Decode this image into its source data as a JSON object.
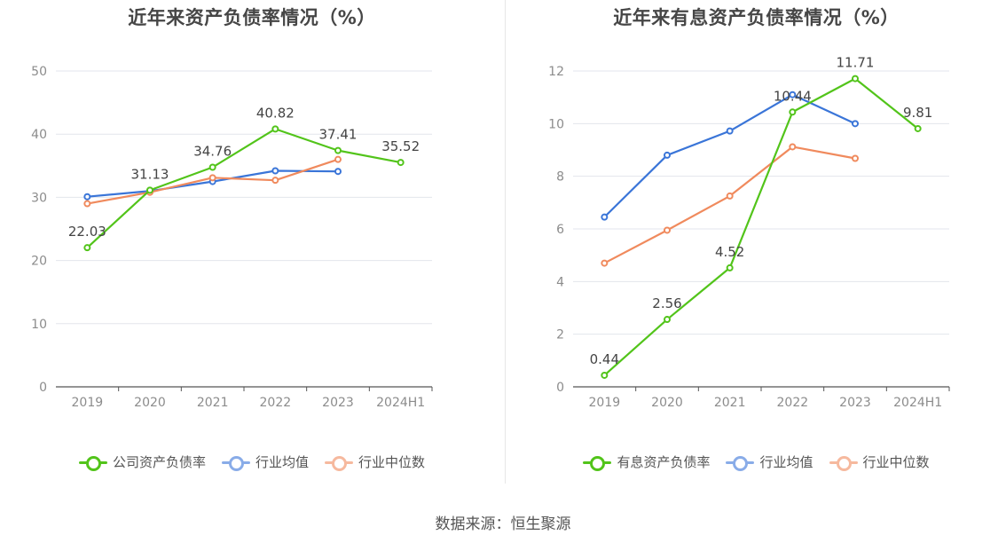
{
  "source": "数据来源：恒生聚源",
  "chart_data": [
    {
      "type": "line",
      "title": "近年来资产负债率情况（%）",
      "categories": [
        "2019",
        "2020",
        "2021",
        "2022",
        "2023",
        "2024H1"
      ],
      "ylim": [
        0,
        50
      ],
      "yticks": [
        0,
        10,
        20,
        30,
        40,
        50
      ],
      "grid": true,
      "legend_position": "bottom",
      "series": [
        {
          "name": "公司资产负债率",
          "color": "#52c41a",
          "values": [
            22.03,
            31.13,
            34.76,
            40.82,
            37.41,
            35.52
          ],
          "labels": [
            "22.03",
            "31.13",
            "34.76",
            "40.82",
            "37.41",
            "35.52"
          ]
        },
        {
          "name": "行业均值",
          "color": "#3a75d8",
          "values": [
            30.1,
            31.0,
            32.5,
            34.2,
            34.1,
            null
          ],
          "labels": null
        },
        {
          "name": "行业中位数",
          "color": "#f08a5d",
          "values": [
            29.0,
            30.8,
            33.1,
            32.7,
            36.0,
            null
          ],
          "labels": null
        }
      ]
    },
    {
      "type": "line",
      "title": "近年来有息资产负债率情况（%）",
      "categories": [
        "2019",
        "2020",
        "2021",
        "2022",
        "2023",
        "2024H1"
      ],
      "ylim": [
        0,
        12
      ],
      "yticks": [
        0,
        2,
        4,
        6,
        8,
        10,
        12
      ],
      "grid": true,
      "legend_position": "bottom",
      "series": [
        {
          "name": "有息资产负债率",
          "color": "#52c41a",
          "values": [
            0.44,
            2.56,
            4.52,
            10.44,
            11.71,
            9.81
          ],
          "labels": [
            "0.44",
            "2.56",
            "4.52",
            "10.44",
            "11.71",
            "9.81"
          ]
        },
        {
          "name": "行业均值",
          "color": "#3a75d8",
          "values": [
            6.45,
            8.8,
            9.72,
            11.1,
            10.0,
            null
          ],
          "labels": null
        },
        {
          "name": "行业中位数",
          "color": "#f08a5d",
          "values": [
            4.7,
            5.95,
            7.25,
            9.12,
            8.68,
            null
          ],
          "labels": null
        }
      ]
    }
  ]
}
